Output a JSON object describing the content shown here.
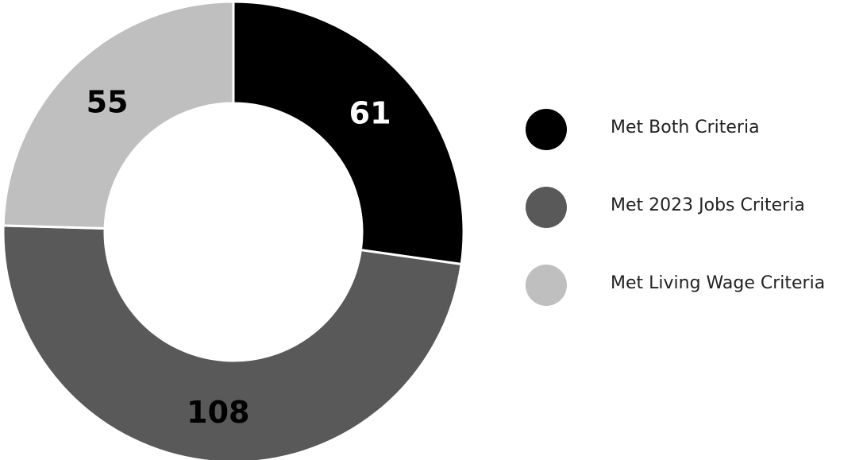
{
  "chart_data": {
    "type": "pie",
    "donut": true,
    "categories": [
      "Met Both Criteria",
      "Met 2023 Jobs Criteria",
      "Met Living Wage Criteria"
    ],
    "values": [
      61,
      108,
      55
    ],
    "data_labels": [
      "61",
      "108",
      "55"
    ],
    "colors": [
      "#000000",
      "#595959",
      "#bfbfbf"
    ],
    "label_colors": [
      "#ffffff",
      "#000000",
      "#000000"
    ],
    "legend_position": "right"
  }
}
